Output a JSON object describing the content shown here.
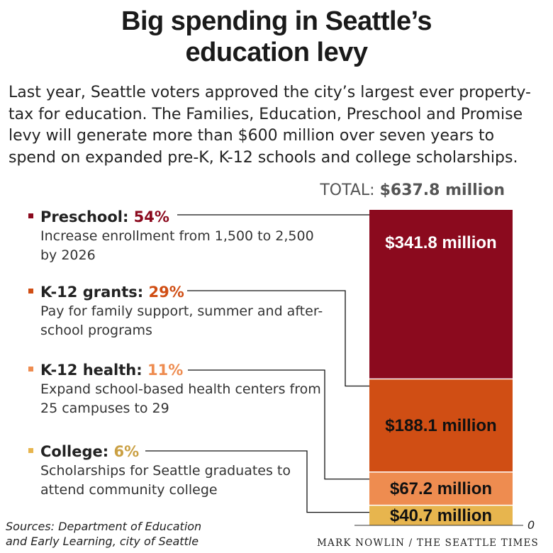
{
  "header": {
    "title_line1": "Big spending in Seattle’s",
    "title_line2": "education levy",
    "intro": "Last year, Seattle voters approved the city’s largest ever property-tax for education. The Families, Education, Preschool and Promise levy will generate more than $600 million over seven years to spend on expanded pre-K, K-12 schools and college scholarships."
  },
  "total": {
    "label": "TOTAL:",
    "value": "$637.8 million"
  },
  "categories": [
    {
      "name": "Preschool:",
      "pct": "54%",
      "color": "#8b0a1e",
      "pct_color": "#8b0a1e",
      "desc": "Increase enrollment from 1,500 to 2,500 by 2026"
    },
    {
      "name": "K-12 grants:",
      "pct": "29%",
      "color": "#d04e14",
      "pct_color": "#d04e14",
      "desc": "Pay for family support, summer and after-school programs"
    },
    {
      "name": "K-12 health:",
      "pct": "11%",
      "color": "#ee8c50",
      "pct_color": "#ee8c50",
      "desc": "Expand school-based health centers from 25 campuses to 29"
    },
    {
      "name": "College:",
      "pct": "6%",
      "color": "#e7b54e",
      "pct_color": "#caa043",
      "desc": "Scholarships for Seattle graduates to attend community college"
    }
  ],
  "chart_data": {
    "type": "bar",
    "stacked": true,
    "categories": [
      "Preschool",
      "K-12 grants",
      "K-12 health",
      "College"
    ],
    "values": [
      341.8,
      188.1,
      67.2,
      40.7
    ],
    "value_labels": [
      "$341.8 million",
      "$188.1 million",
      "$67.2 million",
      "$40.7 million"
    ],
    "colors": [
      "#8b0a1e",
      "#d04e14",
      "#ee8c50",
      "#e7b54e"
    ],
    "label_colors": [
      "#ffffff",
      "#111111",
      "#111111",
      "#111111"
    ],
    "total": 637.8,
    "baseline_label": "0"
  },
  "footer": {
    "sources": "Sources: Department of Education and Early Learning, city of Seattle",
    "credit": "MARK NOWLIN / THE SEATTLE TIMES"
  }
}
